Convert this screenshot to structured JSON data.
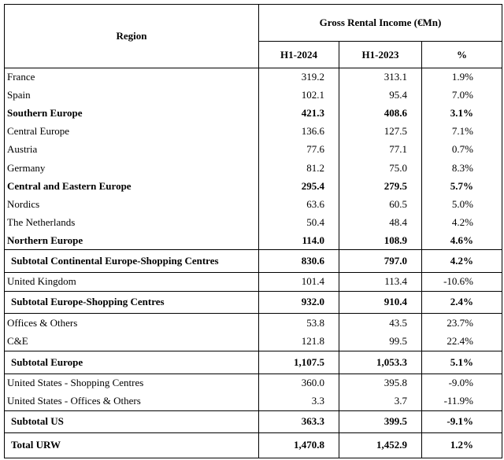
{
  "table": {
    "header": {
      "region": "Region",
      "group": "Gross Rental Income (€Mn)",
      "columns": [
        "H1-2024",
        "H1-2023",
        "%"
      ]
    },
    "rows": [
      [
        "France",
        "319.2",
        "313.1",
        "1.9%"
      ],
      [
        "Spain",
        "102.1",
        "95.4",
        "7.0%"
      ],
      [
        "Southern Europe",
        "421.3",
        "408.6",
        "3.1%"
      ],
      [
        "Central Europe",
        "136.6",
        "127.5",
        "7.1%"
      ],
      [
        "Austria",
        "77.6",
        "77.1",
        "0.7%"
      ],
      [
        "Germany",
        "81.2",
        "75.0",
        "8.3%"
      ],
      [
        "Central and Eastern Europe",
        "295.4",
        "279.5",
        "5.7%"
      ],
      [
        "Nordics",
        "63.6",
        "60.5",
        "5.0%"
      ],
      [
        "The Netherlands",
        "50.4",
        "48.4",
        "4.2%"
      ],
      [
        "Northern Europe",
        "114.0",
        "108.9",
        "4.6%"
      ],
      [
        "Subtotal Continental Europe-Shopping Centres",
        "830.6",
        "797.0",
        "4.2%"
      ],
      [
        "United Kingdom",
        "101.4",
        "113.4",
        "-10.6%"
      ],
      [
        "Subtotal Europe-Shopping Centres",
        "932.0",
        "910.4",
        "2.4%"
      ],
      [
        "Offices & Others",
        "53.8",
        "43.5",
        "23.7%"
      ],
      [
        "C&E",
        "121.8",
        "99.5",
        "22.4%"
      ],
      [
        "Subtotal Europe",
        "1,107.5",
        "1,053.3",
        "5.1%"
      ],
      [
        "United States - Shopping Centres",
        "360.0",
        "395.8",
        "-9.0%"
      ],
      [
        "United States - Offices & Others",
        "3.3",
        "3.7",
        "-11.9%"
      ],
      [
        "Subtotal US",
        "363.3",
        "399.5",
        "-9.1%"
      ],
      [
        "Total URW",
        "1,470.8",
        "1,452.9",
        "1.2%"
      ]
    ]
  }
}
